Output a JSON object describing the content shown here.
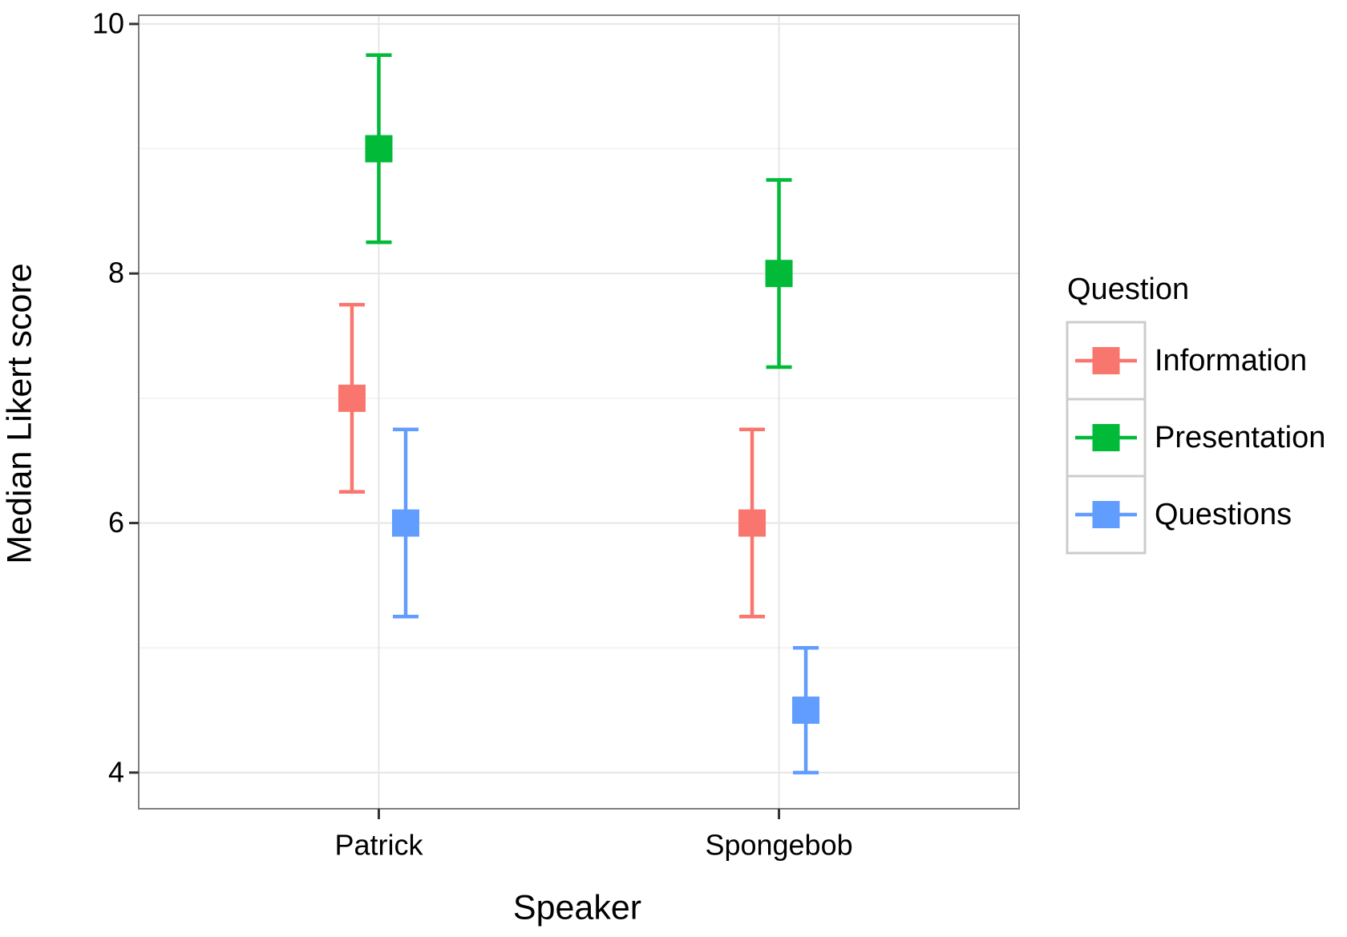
{
  "chart_data": {
    "type": "errorbar_points",
    "x_label": "Speaker",
    "y_label": "Median Likert score",
    "legend_title": "Question",
    "categories": [
      "Patrick",
      "Spongebob"
    ],
    "series": [
      {
        "name": "Information",
        "color": "#F8766D",
        "values": [
          7,
          6
        ],
        "errors": [
          0.75,
          0.75
        ]
      },
      {
        "name": "Presentation",
        "color": "#00BA38",
        "values": [
          9,
          8
        ],
        "errors": [
          0.75,
          0.75
        ]
      },
      {
        "name": "Questions",
        "color": "#619CFF",
        "values": [
          6,
          4.5
        ],
        "errors": [
          0.75,
          0.5
        ]
      }
    ],
    "ylim": [
      3.71,
      10.07
    ],
    "yticks": [
      4,
      6,
      8,
      10
    ],
    "grid": true,
    "legend": "right"
  }
}
